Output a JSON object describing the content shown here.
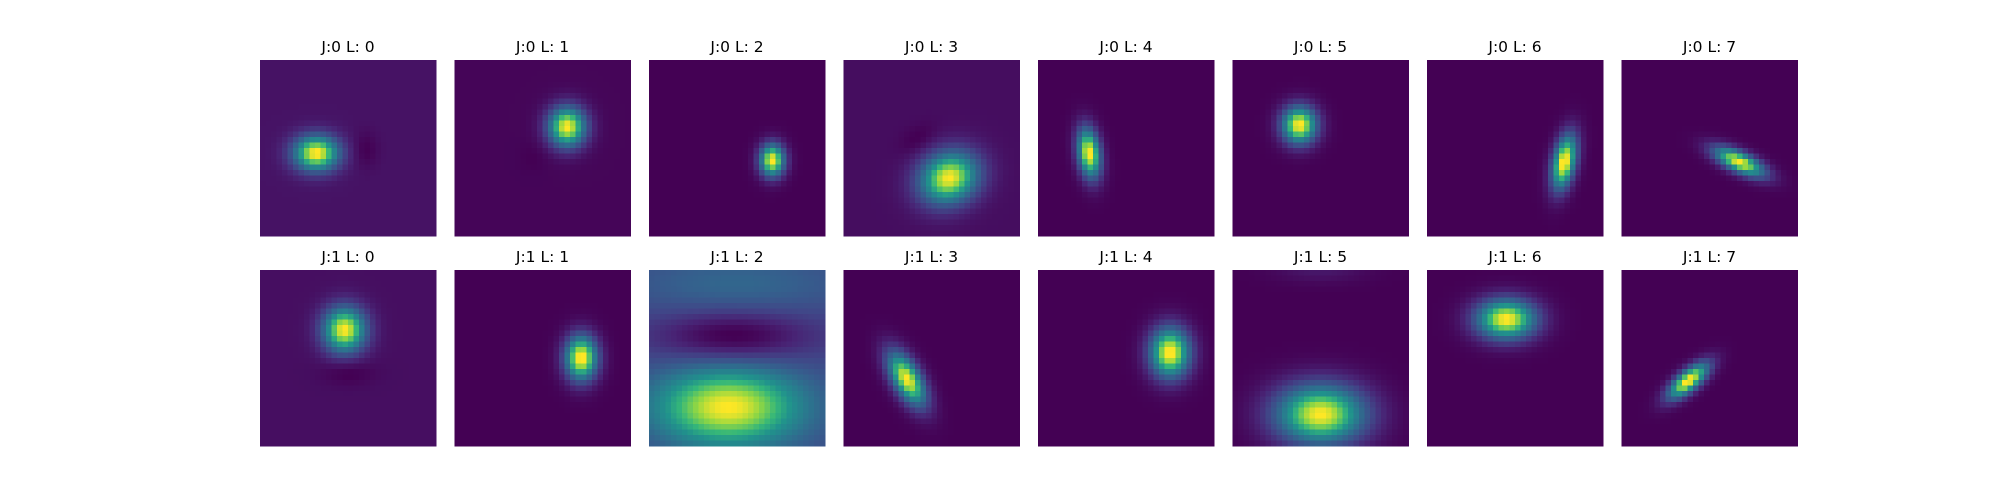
{
  "chart_data": {
    "type": "heatmap",
    "colormap": "viridis",
    "axes": "off",
    "grid": false,
    "rows": 2,
    "cols": 8,
    "panels": [
      {
        "title": "J:0 L: 0",
        "bg": 0.06,
        "blobs": [
          {
            "cx": 0.32,
            "cy": 0.53,
            "sx": 0.09,
            "sy": 0.07,
            "rot": 0,
            "amp": 0.94
          },
          {
            "cx": 0.6,
            "cy": 0.51,
            "sx": 0.05,
            "sy": 0.07,
            "rot": 0,
            "amp": -0.07
          }
        ]
      },
      {
        "title": "J:0 L: 1",
        "bg": 0.03,
        "blobs": [
          {
            "cx": 0.64,
            "cy": 0.38,
            "sx": 0.075,
            "sy": 0.08,
            "rot": 0,
            "amp": 0.97
          },
          {
            "cx": 0.45,
            "cy": 0.55,
            "sx": 0.06,
            "sy": 0.06,
            "rot": 0,
            "amp": -0.02
          }
        ]
      },
      {
        "title": "J:0 L: 2",
        "bg": 0.0,
        "blobs": [
          {
            "cx": 0.7,
            "cy": 0.57,
            "sx": 0.05,
            "sy": 0.065,
            "rot": 0,
            "amp": 0.98
          }
        ]
      },
      {
        "title": "J:0 L: 3",
        "bg": 0.06,
        "blobs": [
          {
            "cx": 0.6,
            "cy": 0.67,
            "sx": 0.12,
            "sy": 0.1,
            "rot": -25,
            "amp": 0.94
          },
          {
            "cx": 0.42,
            "cy": 0.45,
            "sx": 0.08,
            "sy": 0.05,
            "rot": -35,
            "amp": -0.06
          }
        ]
      },
      {
        "title": "J:0 L: 4",
        "bg": 0.0,
        "blobs": [
          {
            "cx": 0.29,
            "cy": 0.53,
            "sx": 0.045,
            "sy": 0.1,
            "rot": -8,
            "amp": 0.98
          }
        ]
      },
      {
        "title": "J:0 L: 5",
        "bg": 0.0,
        "blobs": [
          {
            "cx": 0.38,
            "cy": 0.37,
            "sx": 0.07,
            "sy": 0.075,
            "rot": 0,
            "amp": 0.98
          }
        ]
      },
      {
        "title": "J:0 L: 6",
        "bg": 0.0,
        "blobs": [
          {
            "cx": 0.78,
            "cy": 0.58,
            "sx": 0.045,
            "sy": 0.11,
            "rot": 12,
            "amp": 0.98
          }
        ]
      },
      {
        "title": "J:0 L: 7",
        "bg": 0.02,
        "blobs": [
          {
            "cx": 0.67,
            "cy": 0.58,
            "sx": 0.11,
            "sy": 0.04,
            "rot": 25,
            "amp": 0.96
          }
        ]
      },
      {
        "title": "J:1 L: 0",
        "bg": 0.06,
        "blobs": [
          {
            "cx": 0.48,
            "cy": 0.34,
            "sx": 0.085,
            "sy": 0.09,
            "rot": 0,
            "amp": 0.94
          },
          {
            "cx": 0.5,
            "cy": 0.58,
            "sx": 0.1,
            "sy": 0.05,
            "rot": 0,
            "amp": -0.07
          }
        ]
      },
      {
        "title": "J:1 L: 1",
        "bg": 0.0,
        "blobs": [
          {
            "cx": 0.72,
            "cy": 0.5,
            "sx": 0.065,
            "sy": 0.09,
            "rot": 0,
            "amp": 0.98
          }
        ]
      },
      {
        "title": "J:1 L: 2",
        "bg": 0.28,
        "blobs": [
          {
            "cx": 0.45,
            "cy": 0.78,
            "sx": 0.3,
            "sy": 0.16,
            "rot": 0,
            "amp": 0.7
          },
          {
            "cx": 0.48,
            "cy": 0.38,
            "sx": 0.3,
            "sy": 0.1,
            "rot": 0,
            "amp": -0.28
          },
          {
            "cx": 0.5,
            "cy": 0.08,
            "sx": 0.45,
            "sy": 0.12,
            "rot": 0,
            "amp": 0.15
          }
        ]
      },
      {
        "title": "J:1 L: 3",
        "bg": 0.01,
        "blobs": [
          {
            "cx": 0.36,
            "cy": 0.62,
            "sx": 0.055,
            "sy": 0.12,
            "rot": -30,
            "amp": 0.97
          }
        ]
      },
      {
        "title": "J:1 L: 4",
        "bg": 0.01,
        "blobs": [
          {
            "cx": 0.75,
            "cy": 0.47,
            "sx": 0.08,
            "sy": 0.1,
            "rot": 0,
            "amp": 0.97
          }
        ]
      },
      {
        "title": "J:1 L: 5",
        "bg": 0.02,
        "blobs": [
          {
            "cx": 0.5,
            "cy": 0.82,
            "sx": 0.18,
            "sy": 0.12,
            "rot": 0,
            "amp": 0.96
          },
          {
            "cx": 0.5,
            "cy": 0.0,
            "sx": 0.18,
            "sy": 0.05,
            "rot": 0,
            "amp": 0.08
          }
        ]
      },
      {
        "title": "J:1 L: 6",
        "bg": 0.01,
        "blobs": [
          {
            "cx": 0.45,
            "cy": 0.28,
            "sx": 0.12,
            "sy": 0.08,
            "rot": 0,
            "amp": 0.97
          }
        ]
      },
      {
        "title": "J:1 L: 7",
        "bg": 0.01,
        "blobs": [
          {
            "cx": 0.38,
            "cy": 0.63,
            "sx": 0.1,
            "sy": 0.04,
            "rot": -40,
            "amp": 0.97
          }
        ]
      }
    ]
  }
}
